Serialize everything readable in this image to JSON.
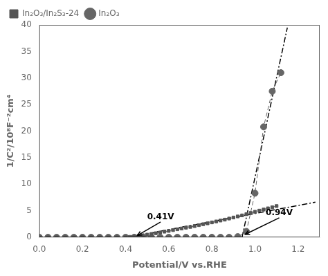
{
  "chart_data": {
    "type": "line",
    "x_label": "Potential/V vs.RHE",
    "y_label": "1/C²/10⁸F⁻²cm⁴",
    "xlim": [
      0.0,
      1.3
    ],
    "ylim": [
      0,
      40
    ],
    "xticks": [
      {
        "value": 0.0,
        "label": "0.0"
      },
      0.2,
      0.4,
      0.6,
      0.8,
      {
        "value": 1.0,
        "label": "1.0"
      },
      1.2
    ],
    "yticks": [
      0,
      5,
      10,
      15,
      20,
      25,
      30,
      35,
      40
    ],
    "grid": false,
    "legend": "upper left",
    "series": [
      {
        "name": "In₂O₃/In₂S₃-24",
        "color": "#555555",
        "marker": "square",
        "line_style": "dashed",
        "x": [
          0.0,
          0.04,
          0.08,
          0.12,
          0.16,
          0.2,
          0.24,
          0.28,
          0.32,
          0.36,
          0.4,
          0.42,
          0.44,
          0.46,
          0.48,
          0.5,
          0.52,
          0.54,
          0.56,
          0.58,
          0.6,
          0.62,
          0.64,
          0.66,
          0.68,
          0.7,
          0.72,
          0.74,
          0.76,
          0.78,
          0.8,
          0.82,
          0.84,
          0.86,
          0.88,
          0.9,
          0.92,
          0.94,
          0.96,
          0.98,
          1.0,
          1.02,
          1.04,
          1.06,
          1.08,
          1.1
        ],
        "values": [
          0.0,
          0.0,
          0.0,
          0.0,
          0.0,
          0.0,
          0.0,
          0.0,
          0.0,
          0.0,
          0.0,
          0.08,
          0.18,
          0.28,
          0.38,
          0.5,
          0.62,
          0.76,
          0.9,
          1.05,
          1.2,
          1.35,
          1.5,
          1.65,
          1.8,
          1.95,
          2.1,
          2.28,
          2.46,
          2.62,
          2.8,
          2.98,
          3.15,
          3.32,
          3.52,
          3.72,
          3.92,
          4.12,
          4.35,
          4.58,
          4.8,
          5.02,
          5.22,
          5.45,
          5.65,
          5.88
        ]
      },
      {
        "name": "In₂O₃",
        "color": "#666666",
        "marker": "circle",
        "line_style": "dashed",
        "x": [
          0.0,
          0.04,
          0.08,
          0.12,
          0.16,
          0.2,
          0.24,
          0.28,
          0.32,
          0.36,
          0.4,
          0.44,
          0.48,
          0.52,
          0.56,
          0.6,
          0.64,
          0.68,
          0.72,
          0.76,
          0.8,
          0.84,
          0.88,
          0.92,
          0.96,
          1.0,
          1.04,
          1.08,
          1.12
        ],
        "values": [
          0.0,
          0.0,
          0.0,
          0.0,
          0.0,
          0.0,
          0.0,
          0.0,
          0.0,
          0.0,
          0.0,
          0.0,
          0.0,
          0.0,
          0.0,
          0.0,
          0.0,
          0.0,
          0.0,
          0.0,
          0.0,
          0.0,
          0.0,
          0.12,
          1.1,
          8.3,
          20.8,
          27.5,
          31.0
        ]
      },
      {
        "color": "#000000",
        "line_style": "dashdot",
        "x": [
          0.41,
          1.28
        ],
        "values": [
          0.0,
          6.6
        ]
      },
      {
        "color": "#000000",
        "line_style": "dashdot",
        "x": [
          0.94,
          1.15
        ],
        "values": [
          0.0,
          39.5
        ]
      }
    ],
    "annotations": [
      {
        "text": "0.41V",
        "x": 0.5,
        "y": 3.0,
        "arrow_x": 0.455,
        "arrow_y": 0.35
      },
      {
        "text": "0.94V",
        "x": 1.05,
        "y": 3.8,
        "arrow_x": 0.955,
        "arrow_y": 0.55
      }
    ]
  }
}
